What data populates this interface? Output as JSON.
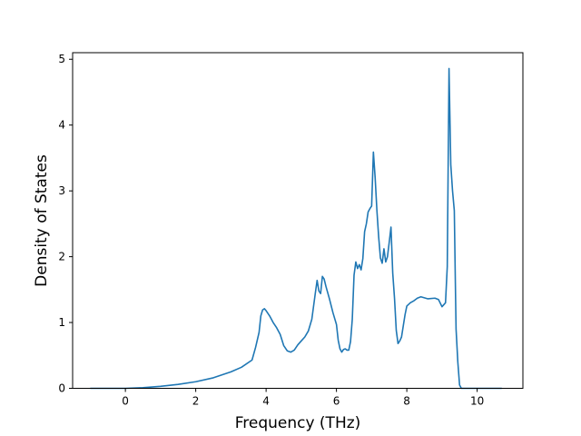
{
  "chart_data": {
    "type": "line",
    "title": "",
    "xlabel": "Frequency (THz)",
    "ylabel": "Density of States",
    "xlim": [
      -1.5,
      11.3
    ],
    "ylim": [
      0,
      5.1
    ],
    "xticks": [
      0,
      2,
      4,
      6,
      8,
      10
    ],
    "yticks": [
      0,
      1,
      2,
      3,
      4,
      5
    ],
    "grid": false,
    "legend": "none",
    "line_color": "#1f77b4",
    "series": [
      {
        "x": [
          -1.0,
          -0.5,
          0.0,
          0.5,
          1.0,
          1.5,
          2.0,
          2.5,
          3.0,
          3.3,
          3.6,
          3.7,
          3.8,
          3.85,
          3.9,
          3.95,
          4.0,
          4.1,
          4.2,
          4.3,
          4.4,
          4.5,
          4.6,
          4.7,
          4.8,
          4.9,
          5.0,
          5.1,
          5.2,
          5.3,
          5.4,
          5.45,
          5.5,
          5.55,
          5.6,
          5.65,
          5.7,
          5.8,
          5.9,
          6.0,
          6.05,
          6.1,
          6.15,
          6.2,
          6.25,
          6.3,
          6.35,
          6.4,
          6.45,
          6.5,
          6.55,
          6.6,
          6.65,
          6.7,
          6.75,
          6.8,
          6.85,
          6.9,
          6.95,
          7.0,
          7.05,
          7.1,
          7.15,
          7.2,
          7.25,
          7.3,
          7.35,
          7.4,
          7.45,
          7.5,
          7.55,
          7.6,
          7.65,
          7.7,
          7.75,
          7.8,
          7.85,
          7.9,
          7.95,
          8.0,
          8.1,
          8.2,
          8.3,
          8.4,
          8.6,
          8.8,
          8.9,
          9.0,
          9.1,
          9.15,
          9.2,
          9.25,
          9.3,
          9.35,
          9.38,
          9.4,
          9.45,
          9.5,
          9.55,
          9.6,
          9.7,
          9.75,
          9.8,
          10.0,
          10.5,
          10.7
        ],
        "y": [
          0.0,
          0.0,
          0.0,
          0.01,
          0.03,
          0.06,
          0.1,
          0.16,
          0.25,
          0.32,
          0.43,
          0.62,
          0.85,
          1.1,
          1.19,
          1.21,
          1.18,
          1.1,
          1.0,
          0.92,
          0.82,
          0.65,
          0.57,
          0.55,
          0.58,
          0.66,
          0.72,
          0.78,
          0.87,
          1.05,
          1.45,
          1.64,
          1.48,
          1.44,
          1.7,
          1.66,
          1.55,
          1.36,
          1.15,
          0.97,
          0.73,
          0.6,
          0.55,
          0.59,
          0.6,
          0.58,
          0.58,
          0.71,
          1.05,
          1.72,
          1.92,
          1.82,
          1.88,
          1.8,
          1.97,
          2.38,
          2.5,
          2.68,
          2.73,
          2.77,
          3.59,
          3.2,
          2.7,
          2.3,
          1.98,
          1.9,
          2.12,
          1.92,
          2.0,
          2.22,
          2.45,
          1.75,
          1.37,
          0.88,
          0.68,
          0.72,
          0.78,
          0.95,
          1.12,
          1.25,
          1.3,
          1.33,
          1.37,
          1.39,
          1.36,
          1.37,
          1.35,
          1.24,
          1.3,
          1.85,
          4.86,
          3.4,
          3.0,
          2.7,
          1.6,
          0.9,
          0.4,
          0.05,
          0.0,
          0.0,
          0.0,
          0.0,
          0.0,
          0.0,
          0.0,
          0.0
        ]
      }
    ]
  }
}
